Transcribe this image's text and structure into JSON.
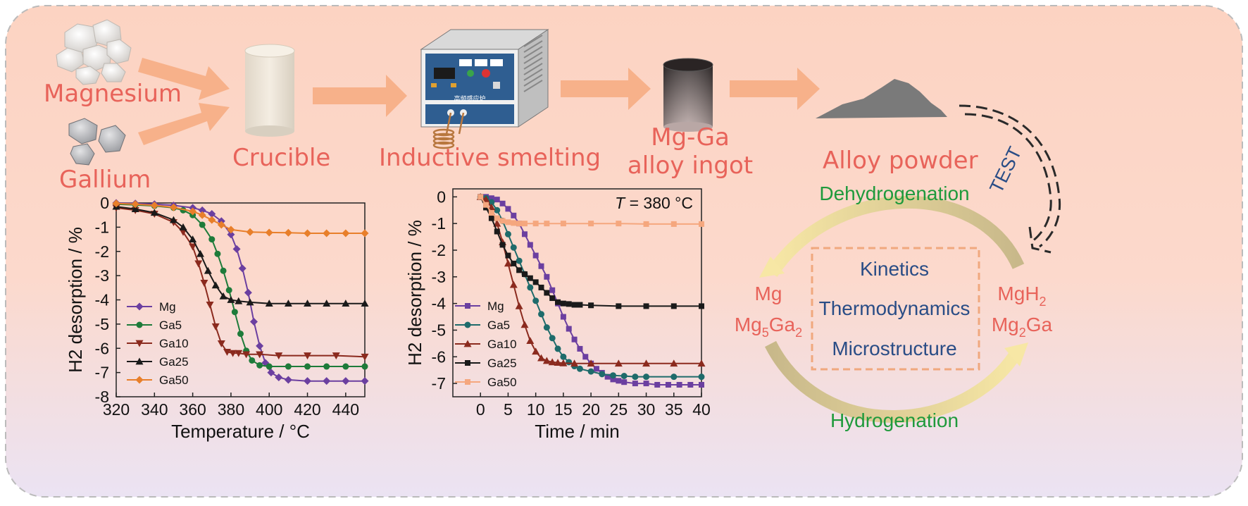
{
  "colors": {
    "title_red": "#e8635a",
    "green": "#1f9a3c",
    "blue": "#2a4d86",
    "arrow_orange": "#f7b18a",
    "bg_top": "#fcd3c2",
    "bg_bottom": "#ebe3f3"
  },
  "process": {
    "magnesium": "Magnesium",
    "gallium": "Gallium",
    "crucible": "Crucible",
    "inductive": "Inductive smelting",
    "ingot_line1": "Mg-Ga",
    "ingot_line2": "alloy ingot",
    "powder": "Alloy powder",
    "test": "TEST",
    "furnace_label": "高频感应炉"
  },
  "cycle": {
    "dehydrogenation": "Dehydrogenation",
    "hydrogenation": "Hydrogenation",
    "left_1": "Mg",
    "left_2_a": "Mg",
    "left_2_sub": "5",
    "left_2_b": "Ga",
    "left_2_sub2": "2",
    "right_1_a": "MgH",
    "right_1_sub": "2",
    "right_2_a": "Mg",
    "right_2_sub": "2",
    "right_2_b": "Ga",
    "box_items": [
      "Kinetics",
      "Thermodynamics",
      "Microstructure"
    ]
  },
  "chart_data": [
    {
      "type": "line",
      "xlabel": "Temperature / °C",
      "ylabel": "H2 desorption / %",
      "xlim": [
        320,
        450
      ],
      "ylim": [
        -8,
        0
      ],
      "x_ticks": [
        320,
        340,
        360,
        380,
        400,
        420,
        440
      ],
      "y_ticks": [
        0,
        -1,
        -2,
        -3,
        -4,
        -5,
        -6,
        -7,
        -8
      ],
      "legend_position": "bottom-left",
      "series": [
        {
          "name": "Mg",
          "color": "#6b3fa0",
          "marker": "diamond",
          "x": [
            320,
            330,
            340,
            350,
            360,
            365,
            370,
            375,
            380,
            383,
            386,
            389,
            392,
            395,
            398,
            401,
            405,
            410,
            420,
            430,
            440,
            450
          ],
          "y": [
            0,
            -0.02,
            -0.05,
            -0.1,
            -0.2,
            -0.3,
            -0.45,
            -0.75,
            -1.3,
            -1.9,
            -2.7,
            -3.7,
            -4.9,
            -5.9,
            -6.6,
            -7.0,
            -7.2,
            -7.3,
            -7.35,
            -7.35,
            -7.35,
            -7.35
          ]
        },
        {
          "name": "Ga5",
          "color": "#1e7b3a",
          "marker": "circle",
          "x": [
            320,
            330,
            340,
            350,
            355,
            360,
            365,
            370,
            373,
            376,
            379,
            382,
            385,
            388,
            391,
            395,
            400,
            410,
            420,
            430,
            440,
            450
          ],
          "y": [
            -0.05,
            -0.08,
            -0.12,
            -0.2,
            -0.3,
            -0.5,
            -0.9,
            -1.5,
            -2.1,
            -2.8,
            -3.6,
            -4.5,
            -5.4,
            -6.1,
            -6.5,
            -6.7,
            -6.75,
            -6.75,
            -6.75,
            -6.75,
            -6.75,
            -6.75
          ]
        },
        {
          "name": "Ga10",
          "color": "#8b2a1e",
          "marker": "triangle-down",
          "x": [
            320,
            330,
            340,
            350,
            355,
            360,
            363,
            366,
            369,
            372,
            375,
            378,
            381,
            384,
            388,
            395,
            405,
            420,
            435,
            450
          ],
          "y": [
            -0.2,
            -0.3,
            -0.45,
            -0.8,
            -1.2,
            -1.8,
            -2.5,
            -3.3,
            -4.2,
            -5.1,
            -5.8,
            -6.15,
            -6.2,
            -6.2,
            -6.25,
            -6.25,
            -6.3,
            -6.3,
            -6.3,
            -6.35
          ]
        },
        {
          "name": "Ga25",
          "color": "#1a1a1a",
          "marker": "triangle-up",
          "x": [
            320,
            330,
            340,
            350,
            355,
            360,
            364,
            368,
            372,
            376,
            380,
            384,
            390,
            400,
            410,
            420,
            430,
            440,
            450
          ],
          "y": [
            -0.15,
            -0.25,
            -0.4,
            -0.7,
            -1.0,
            -1.5,
            -2.1,
            -2.8,
            -3.4,
            -3.85,
            -4.0,
            -4.05,
            -4.1,
            -4.15,
            -4.15,
            -4.15,
            -4.15,
            -4.15,
            -4.15
          ]
        },
        {
          "name": "Ga50",
          "color": "#e87f2a",
          "marker": "diamond",
          "x": [
            320,
            330,
            340,
            350,
            360,
            365,
            370,
            375,
            380,
            390,
            400,
            410,
            420,
            430,
            440,
            450
          ],
          "y": [
            -0.02,
            -0.05,
            -0.1,
            -0.18,
            -0.35,
            -0.5,
            -0.7,
            -0.9,
            -1.1,
            -1.2,
            -1.22,
            -1.23,
            -1.25,
            -1.25,
            -1.25,
            -1.25
          ]
        }
      ]
    },
    {
      "type": "line",
      "annotation_prefix": "T",
      "annotation_value": " = 380 °C",
      "xlabel": "Time / min",
      "ylabel": "H2 desorption / %",
      "xlim": [
        -5,
        40
      ],
      "ylim": [
        -7.5,
        0.3
      ],
      "x_ticks": [
        0,
        5,
        10,
        15,
        20,
        25,
        30,
        35,
        40
      ],
      "y_ticks": [
        0,
        -1,
        -2,
        -3,
        -4,
        -5,
        -6,
        -7
      ],
      "legend_position": "bottom-left",
      "series": [
        {
          "name": "Mg",
          "color": "#6b3fa0",
          "marker": "square",
          "x": [
            0,
            1,
            2,
            3,
            4,
            5,
            6,
            7,
            8,
            9,
            10,
            11,
            12,
            13,
            14,
            15,
            16,
            17,
            18,
            19,
            20,
            21,
            22,
            23,
            24,
            25,
            26,
            28,
            30,
            32,
            34,
            36,
            38,
            40
          ],
          "y": [
            0,
            0,
            -0.05,
            -0.1,
            -0.25,
            -0.45,
            -0.7,
            -1.0,
            -1.4,
            -1.8,
            -2.2,
            -2.6,
            -3.0,
            -3.5,
            -4.0,
            -4.5,
            -4.95,
            -5.35,
            -5.7,
            -6.0,
            -6.25,
            -6.45,
            -6.6,
            -6.75,
            -6.85,
            -6.9,
            -6.95,
            -7.0,
            -7.0,
            -7.05,
            -7.05,
            -7.05,
            -7.05,
            -7.05
          ]
        },
        {
          "name": "Ga5",
          "color": "#1e6b6b",
          "marker": "circle",
          "x": [
            0,
            1,
            2,
            3,
            4,
            5,
            6,
            7,
            8,
            9,
            10,
            11,
            12,
            13,
            14,
            15,
            16,
            17,
            18,
            20,
            22,
            24,
            26,
            28,
            30,
            35,
            40
          ],
          "y": [
            0,
            -0.05,
            -0.2,
            -0.5,
            -0.9,
            -1.4,
            -1.9,
            -2.4,
            -2.9,
            -3.4,
            -3.9,
            -4.4,
            -4.9,
            -5.3,
            -5.7,
            -6.0,
            -6.2,
            -6.35,
            -6.45,
            -6.55,
            -6.65,
            -6.7,
            -6.72,
            -6.75,
            -6.75,
            -6.75,
            -6.75
          ]
        },
        {
          "name": "Ga10",
          "color": "#8b2a1e",
          "marker": "triangle-up",
          "x": [
            0,
            1,
            2,
            3,
            4,
            5,
            6,
            7,
            8,
            9,
            10,
            11,
            12,
            13,
            14,
            15,
            17,
            20,
            25,
            30,
            35,
            40
          ],
          "y": [
            0,
            -0.1,
            -0.4,
            -1.0,
            -1.7,
            -2.5,
            -3.3,
            -4.1,
            -4.8,
            -5.4,
            -5.8,
            -6.05,
            -6.15,
            -6.2,
            -6.22,
            -6.24,
            -6.25,
            -6.25,
            -6.25,
            -6.25,
            -6.25,
            -6.25
          ]
        },
        {
          "name": "Ga25",
          "color": "#1a1a1a",
          "marker": "square",
          "x": [
            0,
            1,
            2,
            3,
            4,
            5,
            6,
            7,
            8,
            9,
            10,
            11,
            12,
            13,
            14,
            15,
            16,
            17,
            18,
            20,
            25,
            30,
            35,
            40
          ],
          "y": [
            0,
            -0.4,
            -0.8,
            -1.3,
            -1.8,
            -2.2,
            -2.5,
            -2.75,
            -2.9,
            -3.05,
            -3.2,
            -3.4,
            -3.6,
            -3.8,
            -3.95,
            -4.0,
            -4.02,
            -4.05,
            -4.05,
            -4.07,
            -4.1,
            -4.1,
            -4.1,
            -4.1
          ]
        },
        {
          "name": "Ga50",
          "color": "#f5a77e",
          "marker": "square",
          "x": [
            0,
            1,
            2,
            3,
            4,
            5,
            6,
            7,
            8,
            10,
            12,
            15,
            20,
            25,
            30,
            35,
            40
          ],
          "y": [
            0,
            -0.3,
            -0.6,
            -0.8,
            -0.9,
            -0.95,
            -0.98,
            -1.0,
            -1.0,
            -1.0,
            -1.0,
            -1.0,
            -1.0,
            -1.0,
            -1.02,
            -1.02,
            -1.02
          ]
        }
      ]
    }
  ]
}
